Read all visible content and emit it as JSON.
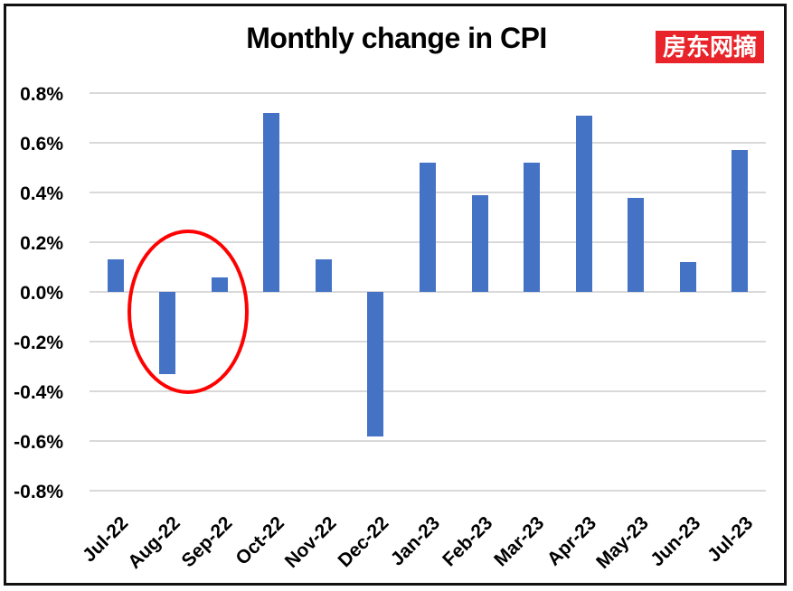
{
  "watermark": {
    "text": "房东网摘",
    "bg_color": "#e82329",
    "text_color": "#ffffff"
  },
  "chart_data": {
    "type": "bar",
    "title": "Monthly change in CPI",
    "categories": [
      "Jul-22",
      "Aug-22",
      "Sep-22",
      "Oct-22",
      "Nov-22",
      "Dec-22",
      "Jan-23",
      "Feb-23",
      "Mar-23",
      "Apr-23",
      "May-23",
      "Jun-23",
      "Jul-23"
    ],
    "values": [
      0.13,
      -0.33,
      0.06,
      0.72,
      0.13,
      -0.58,
      0.52,
      0.39,
      0.52,
      0.71,
      0.38,
      0.12,
      0.57
    ],
    "unit": "%",
    "xlabel": "",
    "ylabel": "",
    "ylim": [
      -0.8,
      0.8
    ],
    "y_tick_step": 0.2,
    "y_ticks": [
      "0.8%",
      "0.6%",
      "0.4%",
      "0.2%",
      "0.0%",
      "-0.2%",
      "-0.4%",
      "-0.6%",
      "-0.8%"
    ],
    "grid": true,
    "legend": "none",
    "bar_color": "#4472c4",
    "gridline_color": "#d9d9d9",
    "annotation": {
      "shape": "ellipse",
      "color": "#fe0202",
      "around_categories": [
        "Aug-22",
        "Sep-22"
      ],
      "meaning": "highlight circle drawn around Aug-22 and Sep-22 bars"
    }
  }
}
